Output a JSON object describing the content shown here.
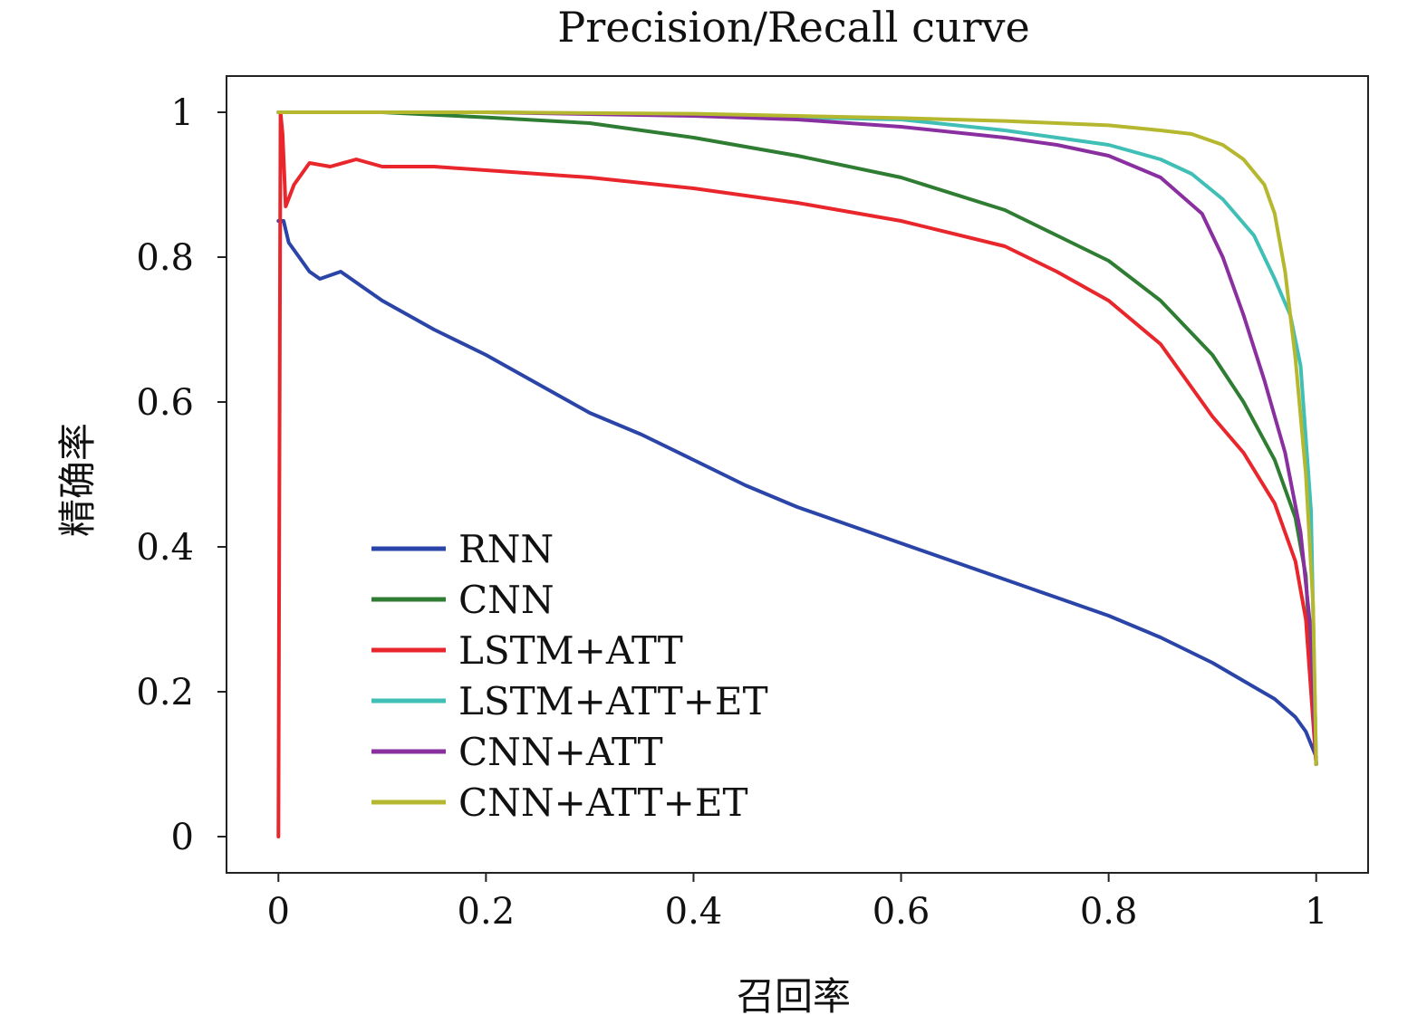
{
  "chart_data": {
    "type": "line",
    "title": "Precision/Recall curve",
    "xlabel": "召回率",
    "ylabel": "精确率",
    "xlim": [
      -0.05,
      1.05
    ],
    "ylim": [
      -0.05,
      1.05
    ],
    "xticks": [
      0,
      0.2,
      0.4,
      0.6,
      0.8,
      1
    ],
    "yticks": [
      0,
      0.2,
      0.4,
      0.6,
      0.8,
      1
    ],
    "xtick_labels": [
      "0",
      "0.2",
      "0.4",
      "0.6",
      "0.8",
      "1"
    ],
    "ytick_labels": [
      "0",
      "0.2",
      "0.4",
      "0.6",
      "0.8",
      "1"
    ],
    "grid": false,
    "legend_position": "lower-left",
    "series": [
      {
        "name": "RNN",
        "color": "#2a44a8",
        "points": [
          [
            0,
            0.85
          ],
          [
            0.005,
            0.85
          ],
          [
            0.01,
            0.82
          ],
          [
            0.02,
            0.8
          ],
          [
            0.03,
            0.78
          ],
          [
            0.04,
            0.77
          ],
          [
            0.06,
            0.78
          ],
          [
            0.08,
            0.76
          ],
          [
            0.1,
            0.74
          ],
          [
            0.15,
            0.7
          ],
          [
            0.2,
            0.665
          ],
          [
            0.25,
            0.625
          ],
          [
            0.3,
            0.585
          ],
          [
            0.35,
            0.555
          ],
          [
            0.4,
            0.52
          ],
          [
            0.45,
            0.485
          ],
          [
            0.5,
            0.455
          ],
          [
            0.55,
            0.43
          ],
          [
            0.6,
            0.405
          ],
          [
            0.65,
            0.38
          ],
          [
            0.7,
            0.355
          ],
          [
            0.75,
            0.33
          ],
          [
            0.8,
            0.305
          ],
          [
            0.85,
            0.275
          ],
          [
            0.9,
            0.24
          ],
          [
            0.93,
            0.215
          ],
          [
            0.96,
            0.19
          ],
          [
            0.98,
            0.165
          ],
          [
            0.99,
            0.145
          ],
          [
            1.0,
            0.11
          ]
        ]
      },
      {
        "name": "CNN",
        "color": "#2e7d32",
        "points": [
          [
            0,
            1.0
          ],
          [
            0.1,
            1.0
          ],
          [
            0.2,
            0.993
          ],
          [
            0.3,
            0.985
          ],
          [
            0.35,
            0.975
          ],
          [
            0.4,
            0.965
          ],
          [
            0.5,
            0.94
          ],
          [
            0.6,
            0.91
          ],
          [
            0.7,
            0.865
          ],
          [
            0.75,
            0.83
          ],
          [
            0.8,
            0.795
          ],
          [
            0.85,
            0.74
          ],
          [
            0.9,
            0.665
          ],
          [
            0.93,
            0.6
          ],
          [
            0.96,
            0.52
          ],
          [
            0.98,
            0.44
          ],
          [
            0.99,
            0.36
          ],
          [
            1.0,
            0.1
          ]
        ]
      },
      {
        "name": "LSTM+ATT",
        "color": "#e8262b",
        "points": [
          [
            0,
            0.0
          ],
          [
            0.001,
            0.5
          ],
          [
            0.002,
            1.0
          ],
          [
            0.004,
            0.97
          ],
          [
            0.007,
            0.87
          ],
          [
            0.015,
            0.9
          ],
          [
            0.03,
            0.93
          ],
          [
            0.05,
            0.925
          ],
          [
            0.075,
            0.935
          ],
          [
            0.1,
            0.925
          ],
          [
            0.15,
            0.925
          ],
          [
            0.2,
            0.92
          ],
          [
            0.3,
            0.91
          ],
          [
            0.4,
            0.895
          ],
          [
            0.5,
            0.875
          ],
          [
            0.6,
            0.85
          ],
          [
            0.7,
            0.815
          ],
          [
            0.75,
            0.78
          ],
          [
            0.8,
            0.74
          ],
          [
            0.85,
            0.68
          ],
          [
            0.9,
            0.58
          ],
          [
            0.93,
            0.53
          ],
          [
            0.96,
            0.46
          ],
          [
            0.98,
            0.38
          ],
          [
            0.99,
            0.3
          ],
          [
            1.0,
            0.1
          ]
        ]
      },
      {
        "name": "LSTM+ATT+ET",
        "color": "#3fbfb5",
        "points": [
          [
            0,
            1.0
          ],
          [
            0.2,
            1.0
          ],
          [
            0.4,
            0.997
          ],
          [
            0.5,
            0.993
          ],
          [
            0.6,
            0.99
          ],
          [
            0.7,
            0.975
          ],
          [
            0.75,
            0.965
          ],
          [
            0.8,
            0.955
          ],
          [
            0.85,
            0.935
          ],
          [
            0.88,
            0.915
          ],
          [
            0.91,
            0.88
          ],
          [
            0.94,
            0.83
          ],
          [
            0.96,
            0.77
          ],
          [
            0.975,
            0.72
          ],
          [
            0.985,
            0.65
          ],
          [
            0.995,
            0.45
          ],
          [
            1.0,
            0.1
          ]
        ]
      },
      {
        "name": "CNN+ATT",
        "color": "#8a2fa0",
        "points": [
          [
            0,
            1.0
          ],
          [
            0.2,
            1.0
          ],
          [
            0.4,
            0.995
          ],
          [
            0.5,
            0.99
          ],
          [
            0.6,
            0.98
          ],
          [
            0.7,
            0.965
          ],
          [
            0.75,
            0.955
          ],
          [
            0.8,
            0.94
          ],
          [
            0.85,
            0.91
          ],
          [
            0.87,
            0.885
          ],
          [
            0.89,
            0.86
          ],
          [
            0.91,
            0.8
          ],
          [
            0.93,
            0.72
          ],
          [
            0.95,
            0.63
          ],
          [
            0.97,
            0.53
          ],
          [
            0.985,
            0.42
          ],
          [
            0.995,
            0.28
          ],
          [
            1.0,
            0.1
          ]
        ]
      },
      {
        "name": "CNN+ATT+ET",
        "color": "#b5b82e",
        "points": [
          [
            0,
            1.0
          ],
          [
            0.2,
            1.0
          ],
          [
            0.4,
            0.998
          ],
          [
            0.5,
            0.995
          ],
          [
            0.6,
            0.992
          ],
          [
            0.7,
            0.988
          ],
          [
            0.8,
            0.982
          ],
          [
            0.85,
            0.975
          ],
          [
            0.88,
            0.97
          ],
          [
            0.91,
            0.955
          ],
          [
            0.93,
            0.935
          ],
          [
            0.95,
            0.9
          ],
          [
            0.96,
            0.86
          ],
          [
            0.97,
            0.78
          ],
          [
            0.98,
            0.66
          ],
          [
            0.99,
            0.5
          ],
          [
            0.997,
            0.32
          ],
          [
            1.0,
            0.1
          ]
        ]
      }
    ]
  }
}
